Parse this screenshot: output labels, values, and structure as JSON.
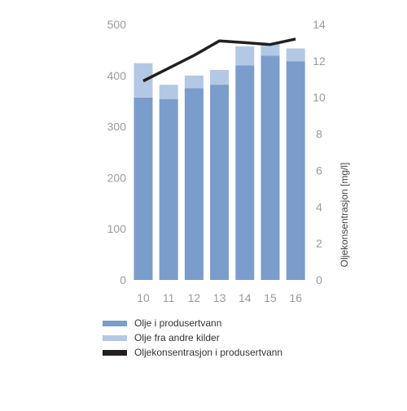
{
  "chart_data": {
    "type": "bar",
    "categories": [
      "10",
      "11",
      "12",
      "13",
      "14",
      "15",
      "16"
    ],
    "series": [
      {
        "name": "Olje i produsertvann",
        "kind": "bar-stacked",
        "axis": "left",
        "color": "#7a9dcb",
        "values": [
          357,
          354,
          375,
          382,
          420,
          439,
          428
        ]
      },
      {
        "name": "Olje fra andre kilder",
        "kind": "bar-stacked",
        "axis": "left",
        "color": "#b3c8e5",
        "values": [
          67,
          28,
          25,
          29,
          37,
          23,
          25
        ]
      },
      {
        "name": "Oljekonsentrasjon i produsertvann",
        "kind": "line",
        "axis": "right",
        "color": "#231f20",
        "values": [
          10.9,
          11.6,
          12.3,
          13.1,
          13.0,
          12.9,
          13.2
        ]
      }
    ],
    "ylim_left": [
      0,
      500
    ],
    "yticks_left": [
      "0",
      "100",
      "200",
      "300",
      "400",
      "500"
    ],
    "ylim_right": [
      0,
      14
    ],
    "yticks_right": [
      "0",
      "2",
      "4",
      "6",
      "8",
      "10",
      "12",
      "14"
    ],
    "ylabel_right": "Oljekonsentrasjon [mg/l]",
    "xlabel": "",
    "ylabel": "",
    "title": "",
    "grid": false,
    "legend_position": "bottom-left"
  }
}
